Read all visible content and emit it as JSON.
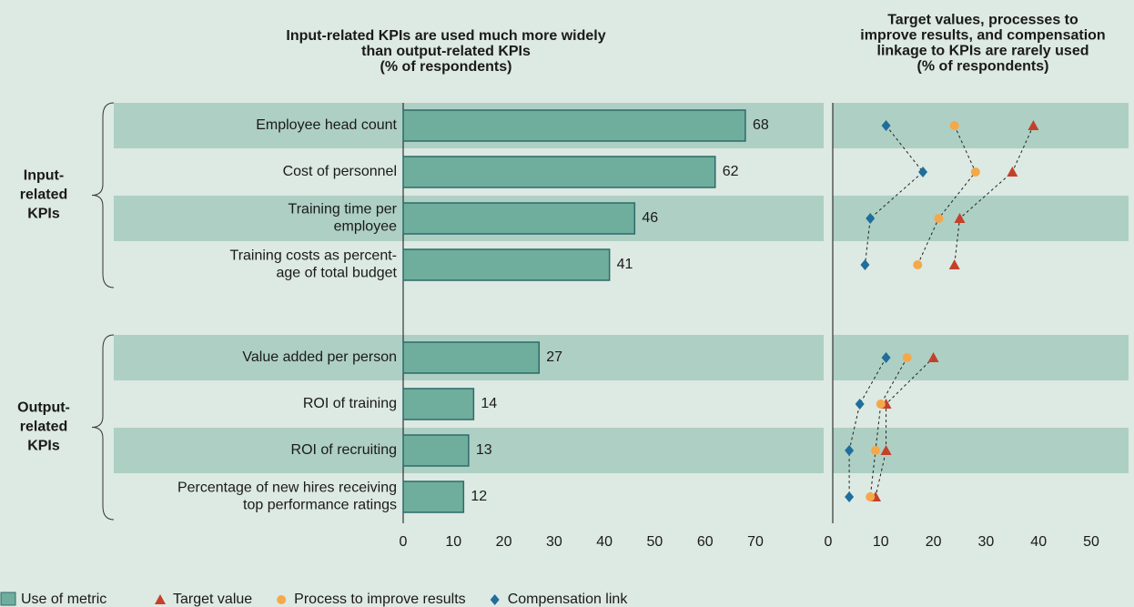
{
  "chart_data": [
    {
      "type": "bar",
      "title": [
        "Input-related KPIs are used much more widely",
        "than output-related KPIs",
        "(% of respondents)"
      ],
      "categories": [
        [
          "Employee head count"
        ],
        [
          "Cost of personnel"
        ],
        [
          "Training time per",
          "employee"
        ],
        [
          "Training costs as percent-",
          "age of total budget"
        ],
        null,
        [
          "Value added per person"
        ],
        [
          "ROI of training"
        ],
        [
          "ROI of recruiting"
        ],
        [
          "Percentage of new hires receiving",
          "top performance ratings"
        ]
      ],
      "groups": [
        [
          "Input-",
          "related",
          "KPIs"
        ],
        [
          "Output-",
          "related",
          "KPIs"
        ]
      ],
      "series": [
        {
          "name": "Use of metric",
          "color": "#6fae9c",
          "values": [
            68,
            62,
            46,
            41,
            null,
            27,
            14,
            13,
            12
          ]
        }
      ],
      "xlim": [
        0,
        70
      ],
      "xticks": [
        0,
        10,
        20,
        30,
        40,
        50,
        60,
        70
      ]
    },
    {
      "type": "scatter",
      "title": [
        "Target values, processes to",
        "improve results, and compensation",
        "linkage to KPIs are rarely used",
        "(% of respondents)"
      ],
      "series": [
        {
          "name": "Target value",
          "color": "#c4402a",
          "marker": "triangle",
          "values": [
            39,
            35,
            25,
            24,
            null,
            20,
            11,
            11,
            9
          ]
        },
        {
          "name": "Process to improve results",
          "color": "#f5a84a",
          "marker": "circle",
          "values": [
            24,
            28,
            21,
            17,
            null,
            15,
            10,
            9,
            8
          ]
        },
        {
          "name": "Compensation link",
          "color": "#1f6e9c",
          "marker": "diamond",
          "values": [
            11,
            18,
            8,
            7,
            null,
            11,
            6,
            4,
            4
          ]
        }
      ],
      "xlim": [
        0,
        50
      ],
      "xticks": [
        0,
        10,
        20,
        30,
        40,
        50
      ]
    }
  ]
}
